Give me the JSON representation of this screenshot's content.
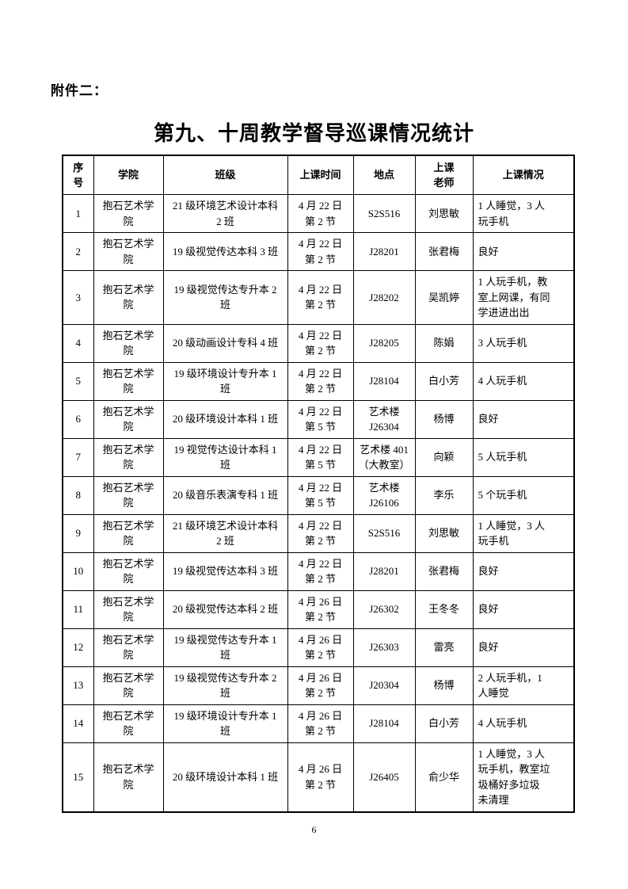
{
  "page": {
    "attachment_label": "附件二：",
    "title": "第九、十周教学督导巡课情况统计",
    "page_number": "6"
  },
  "table": {
    "headers": [
      "序\n号",
      "学院",
      "班级",
      "上课时间",
      "地点",
      "上课\n老师",
      "上课情况"
    ],
    "rows": [
      {
        "no": "1",
        "college": "抱石艺术学\n院",
        "class": "21 级环境艺术设计本科\n2 班",
        "time": "4 月 22 日\n第 2 节",
        "location": "S2S516",
        "teacher": "刘思敏",
        "situation": "1 人睡觉，3 人\n玩手机"
      },
      {
        "no": "2",
        "college": "抱石艺术学\n院",
        "class": "19 级视觉传达本科 3 班",
        "time": "4 月 22 日\n第 2 节",
        "location": "J28201",
        "teacher": "张君梅",
        "situation": "良好"
      },
      {
        "no": "3",
        "college": "抱石艺术学\n院",
        "class": "19 级视觉传达专升本 2\n班",
        "time": "4 月 22 日\n第 2 节",
        "location": "J28202",
        "teacher": "吴凯婷",
        "situation": "1 人玩手机，教\n室上网课，有同\n学进进出出"
      },
      {
        "no": "4",
        "college": "抱石艺术学\n院",
        "class": "20 级动画设计专科 4 班",
        "time": "4 月 22 日\n第 2 节",
        "location": "J28205",
        "teacher": "陈娟",
        "situation": "3 人玩手机"
      },
      {
        "no": "5",
        "college": "抱石艺术学\n院",
        "class": "19 级环境设计专升本 1\n班",
        "time": "4 月 22 日\n第 2 节",
        "location": "J28104",
        "teacher": "白小芳",
        "situation": "4 人玩手机"
      },
      {
        "no": "6",
        "college": "抱石艺术学\n院",
        "class": "20 级环境设计本科 1 班",
        "time": "4 月 22 日\n第 5 节",
        "location": "艺术楼\nJ26304",
        "teacher": "杨博",
        "situation": "良好"
      },
      {
        "no": "7",
        "college": "抱石艺术学\n院",
        "class": "19 视觉传达设计本科 1\n班",
        "time": "4 月 22 日\n第 5 节",
        "location": "艺术楼 401\n（大教室）",
        "teacher": "向颖",
        "situation": "5 人玩手机"
      },
      {
        "no": "8",
        "college": "抱石艺术学\n院",
        "class": "20 级音乐表演专科 1 班",
        "time": "4 月 22 日\n第 5 节",
        "location": "艺术楼\nJ26106",
        "teacher": "李乐",
        "situation": "5 个玩手机"
      },
      {
        "no": "9",
        "college": "抱石艺术学\n院",
        "class": "21 级环境艺术设计本科\n2 班",
        "time": "4 月 22 日\n第 2 节",
        "location": "S2S516",
        "teacher": "刘思敏",
        "situation": "1 人睡觉，3 人\n玩手机"
      },
      {
        "no": "10",
        "college": "抱石艺术学\n院",
        "class": "19 级视觉传达本科 3 班",
        "time": "4 月 22 日\n第 2 节",
        "location": "J28201",
        "teacher": "张君梅",
        "situation": "良好"
      },
      {
        "no": "11",
        "college": "抱石艺术学\n院",
        "class": "20 级视觉传达本科 2 班",
        "time": "4 月 26 日\n第 2 节",
        "location": "J26302",
        "teacher": "王冬冬",
        "situation": "良好"
      },
      {
        "no": "12",
        "college": "抱石艺术学\n院",
        "class": "19 级视觉传达专升本 1\n班",
        "time": "4 月 26 日\n第 2 节",
        "location": "J26303",
        "teacher": "雷亮",
        "situation": "良好"
      },
      {
        "no": "13",
        "college": "抱石艺术学\n院",
        "class": "19 级视觉传达专升本 2\n班",
        "time": "4 月 26 日\n第 2 节",
        "location": "J20304",
        "teacher": "杨博",
        "situation": "2 人玩手机，1\n人睡觉"
      },
      {
        "no": "14",
        "college": "抱石艺术学\n院",
        "class": "19 级环境设计专升本 1\n班",
        "time": "4 月 26 日\n第 2 节",
        "location": "J28104",
        "teacher": "白小芳",
        "situation": "4 人玩手机"
      },
      {
        "no": "15",
        "college": "抱石艺术学\n院",
        "class": "20 级环境设计本科 1 班",
        "time": "4 月 26 日\n第 2 节",
        "location": "J26405",
        "teacher": "俞少华",
        "situation": "1 人睡觉，3 人\n玩手机，教室垃\n圾桶好多垃圾\n未清理"
      }
    ]
  }
}
